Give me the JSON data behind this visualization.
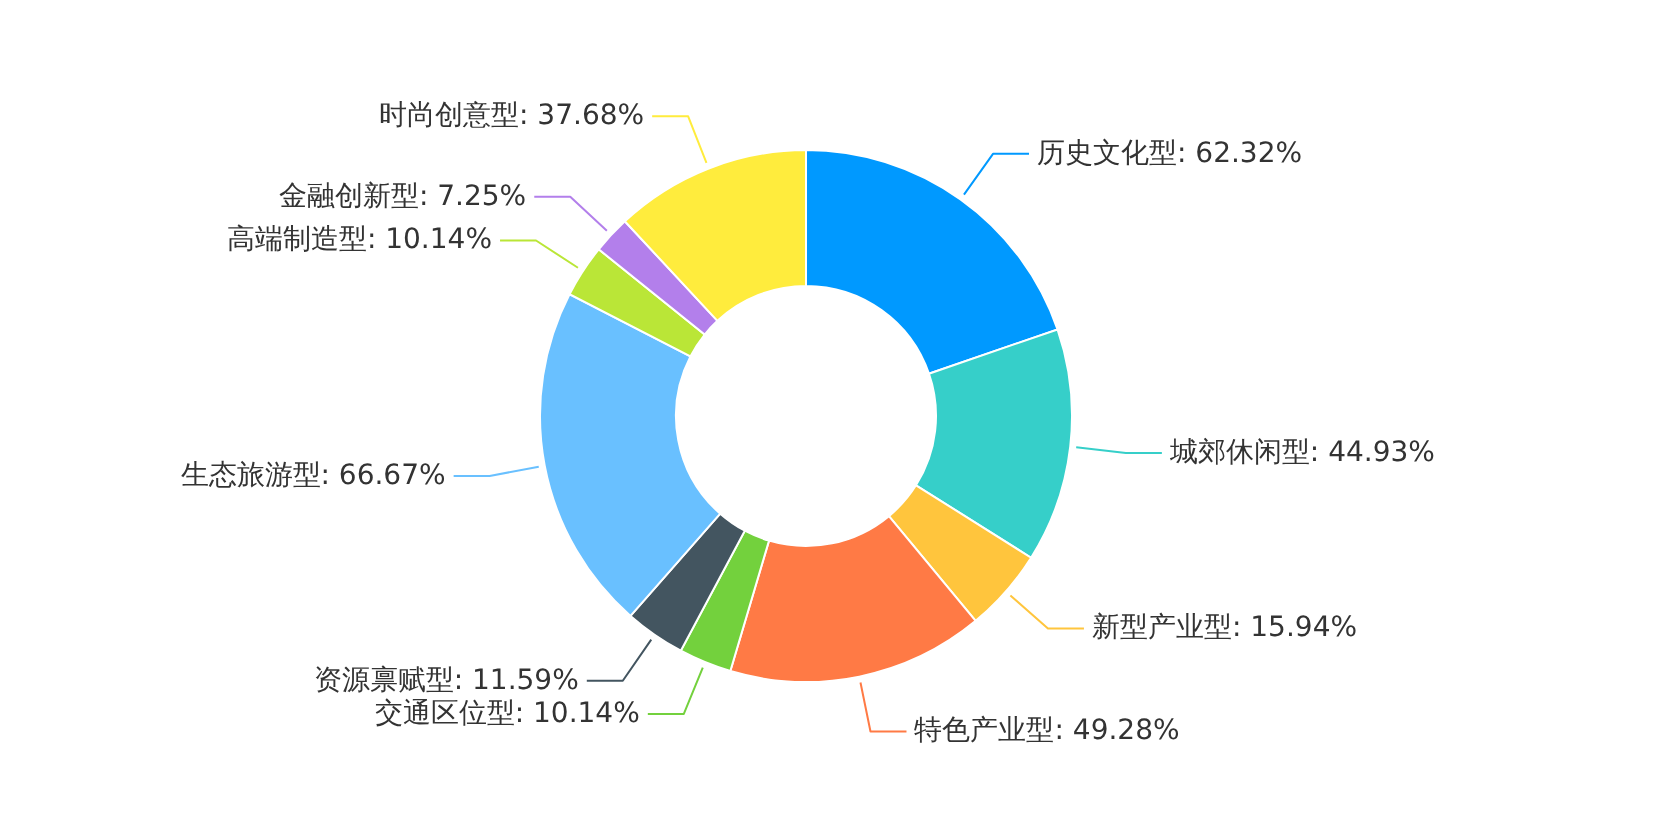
{
  "chart_data": {
    "type": "donut",
    "categories": [
      "历史文化型",
      "城郊休闲型",
      "新型产业型",
      "特色产业型",
      "交通区位型",
      "资源禀赋型",
      "生态旅游型",
      "高端制造型",
      "金融创新型",
      "时尚创意型"
    ],
    "values": [
      62.32,
      44.93,
      15.94,
      49.28,
      10.14,
      11.59,
      66.67,
      10.14,
      7.25,
      37.68
    ],
    "value_labels": [
      "62.32%",
      "44.93%",
      "15.94%",
      "49.28%",
      "10.14%",
      "11.59%",
      "66.67%",
      "10.14%",
      "7.25%",
      "37.68%"
    ],
    "colors": [
      "#0099ff",
      "#36cfc9",
      "#ffc53d",
      "#ff7a45",
      "#73d13d",
      "#435560",
      "#69c0ff",
      "#bae637",
      "#b37feb",
      "#ffec3d"
    ]
  }
}
